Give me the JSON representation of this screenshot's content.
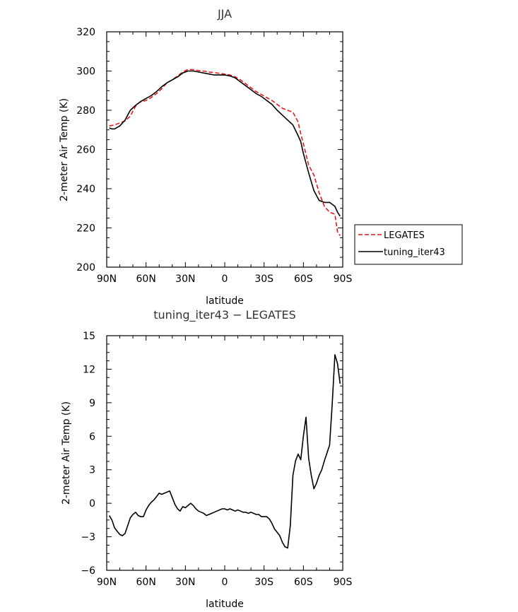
{
  "chart_data": [
    {
      "type": "line",
      "title": "JJA",
      "xlabel": "latitude",
      "ylabel": "2-meter Air Temp (K)",
      "xticks": [
        "90N",
        "60N",
        "30N",
        "0",
        "30S",
        "60S",
        "90S"
      ],
      "xlim": [
        90,
        -90
      ],
      "ylim": [
        200,
        320
      ],
      "yticks": [
        "200",
        "220",
        "240",
        "260",
        "280",
        "300",
        "320"
      ],
      "legend_position": "right",
      "series": [
        {
          "name": "LEGATES",
          "color": "#e41a1c",
          "dash": "dashed",
          "x": [
            88,
            84,
            80,
            76,
            72,
            68,
            65,
            60,
            56,
            52,
            48,
            44,
            40,
            36,
            32,
            28,
            24,
            20,
            16,
            12,
            8,
            4,
            0,
            -4,
            -8,
            -12,
            -16,
            -20,
            -24,
            -28,
            -32,
            -36,
            -40,
            -44,
            -48,
            -52,
            -56,
            -58,
            -60,
            -64,
            -68,
            -72,
            -76,
            -80,
            -84,
            -86,
            -88
          ],
          "values": [
            272,
            272.5,
            273.5,
            274.5,
            277,
            282,
            284,
            285,
            286.5,
            288.5,
            291,
            294,
            295.5,
            297.5,
            299.5,
            300.8,
            300.7,
            300.2,
            300,
            299.5,
            299.2,
            298.8,
            298.4,
            298,
            297,
            295.5,
            293.5,
            291.5,
            289.5,
            288,
            286.5,
            285,
            283,
            281,
            280,
            279,
            274,
            268,
            263,
            252,
            247,
            238,
            231,
            228,
            227,
            218,
            216
          ]
        },
        {
          "name": "tuning_iter43",
          "color": "#000000",
          "dash": "solid",
          "x": [
            88,
            86,
            84,
            80,
            76,
            72,
            68,
            64,
            60,
            56,
            52,
            48,
            44,
            40,
            36,
            32,
            28,
            24,
            20,
            16,
            12,
            8,
            4,
            0,
            -4,
            -8,
            -12,
            -16,
            -20,
            -24,
            -28,
            -32,
            -36,
            -40,
            -44,
            -48,
            -52,
            -56,
            -58,
            -60,
            -64,
            -68,
            -72,
            -76,
            -80,
            -84,
            -86,
            -88
          ],
          "values": [
            271,
            270.5,
            270.5,
            272,
            275,
            280,
            282.5,
            284.5,
            286,
            287.5,
            289.5,
            292,
            294,
            295.5,
            297,
            299,
            300,
            300,
            299.5,
            299,
            298.5,
            298,
            298,
            298,
            297.5,
            296.5,
            294.5,
            292.5,
            290.5,
            288.5,
            287,
            285,
            283,
            280,
            277.5,
            275,
            272.5,
            267,
            264,
            258,
            248,
            239,
            234,
            233,
            233,
            231,
            228,
            226
          ]
        }
      ]
    },
    {
      "type": "line",
      "title": "tuning_iter43 − LEGATES",
      "xlabel": "latitude",
      "ylabel": "2-meter Air Temp (K)",
      "xticks": [
        "90N",
        "60N",
        "30N",
        "0",
        "30S",
        "60S",
        "90S"
      ],
      "xlim": [
        90,
        -90
      ],
      "ylim": [
        -6,
        15
      ],
      "yticks": [
        "−6",
        "−3",
        "0",
        "3",
        "6",
        "9",
        "12",
        "15"
      ],
      "series": [
        {
          "color": "#000000",
          "dash": "solid",
          "x": [
            88,
            86,
            84,
            82,
            80,
            78,
            76,
            74,
            72,
            70,
            68,
            66,
            64,
            62,
            60,
            58,
            56,
            54,
            52,
            50,
            48,
            46,
            44,
            42,
            40,
            38,
            36,
            34,
            32,
            30,
            28,
            26,
            24,
            22,
            20,
            18,
            16,
            14,
            12,
            10,
            8,
            6,
            4,
            2,
            0,
            -2,
            -4,
            -6,
            -8,
            -10,
            -12,
            -14,
            -16,
            -18,
            -20,
            -22,
            -24,
            -26,
            -28,
            -30,
            -32,
            -34,
            -36,
            -38,
            -40,
            -42,
            -44,
            -46,
            -48,
            -50,
            -52,
            -54,
            -56,
            -58,
            -60,
            -62,
            -64,
            -66,
            -68,
            -70,
            -72,
            -74,
            -76,
            -78,
            -80,
            -82,
            -84,
            -86,
            -88
          ],
          "values": [
            -1.1,
            -1.5,
            -2.2,
            -2.5,
            -2.8,
            -2.9,
            -2.7,
            -2.0,
            -1.3,
            -1.0,
            -0.8,
            -1.1,
            -1.2,
            -1.2,
            -0.6,
            -0.2,
            0.1,
            0.3,
            0.6,
            0.9,
            0.8,
            0.9,
            1.0,
            1.1,
            0.5,
            -0.1,
            -0.5,
            -0.7,
            -0.3,
            -0.4,
            -0.2,
            0.0,
            -0.2,
            -0.5,
            -0.7,
            -0.8,
            -0.9,
            -1.1,
            -1.0,
            -0.9,
            -0.8,
            -0.7,
            -0.6,
            -0.5,
            -0.5,
            -0.6,
            -0.5,
            -0.6,
            -0.7,
            -0.6,
            -0.7,
            -0.8,
            -0.8,
            -0.9,
            -0.8,
            -0.9,
            -1.0,
            -1.0,
            -1.2,
            -1.2,
            -1.2,
            -1.4,
            -1.8,
            -2.3,
            -2.6,
            -2.9,
            -3.5,
            -3.9,
            -4.0,
            -2.0,
            2.5,
            3.8,
            4.4,
            3.9,
            6.0,
            7.7,
            4.0,
            2.5,
            1.3,
            1.8,
            2.5,
            3.0,
            3.8,
            4.5,
            5.2,
            9.0,
            13.3,
            12.5,
            10.7
          ]
        }
      ]
    }
  ]
}
